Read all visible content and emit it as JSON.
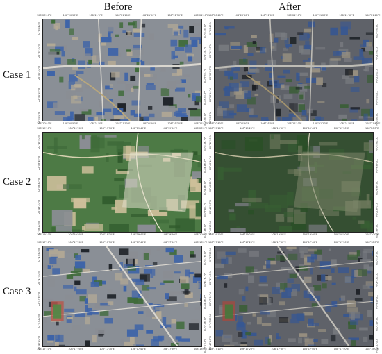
{
  "headers": {
    "before": "Before",
    "after": "After"
  },
  "cases": [
    {
      "label": "Case 1",
      "lon_ticks": [
        "108°20'40\"E",
        "108°20'50\"E",
        "108°21'0\"E",
        "108°21'10\"E",
        "108°21'20\"E",
        "108°21'30\"E",
        "108°21'40\"E"
      ],
      "lat_ticks": [
        "22°50'40\"N",
        "22°50'30\"N",
        "22°50'20\"N",
        "22°50'10\"N",
        "22°50'0\"N"
      ]
    },
    {
      "label": "Case 2",
      "lon_ticks": [
        "108°19'10\"E",
        "108°19'20\"E",
        "108°19'30\"E",
        "108°19'40\"E",
        "108°19'50\"E",
        "108°20'0\"E"
      ],
      "lat_ticks": [
        "22°48'50\"N",
        "22°48'40\"N",
        "22°48'30\"N",
        "22°48'20\"N",
        "22°48'10\"N"
      ]
    },
    {
      "label": "Case 3",
      "lon_ticks": [
        "108°17'10\"E",
        "108°17'20\"E",
        "108°17'30\"E",
        "108°17'40\"E",
        "108°17'50\"E",
        "108°18'0\"E"
      ],
      "lat_ticks": [
        "22°47'50\"N",
        "22°47'40\"N",
        "22°47'30\"N",
        "22°47'20\"N",
        "22°47'10\"N"
      ]
    }
  ],
  "colors": {
    "urban_blue": "#3d63a8",
    "roof_grey": "#8a8d93",
    "vegetation": "#3f6b3a",
    "bare_soil": "#cdbf9a",
    "shadow": "#1e2228"
  }
}
